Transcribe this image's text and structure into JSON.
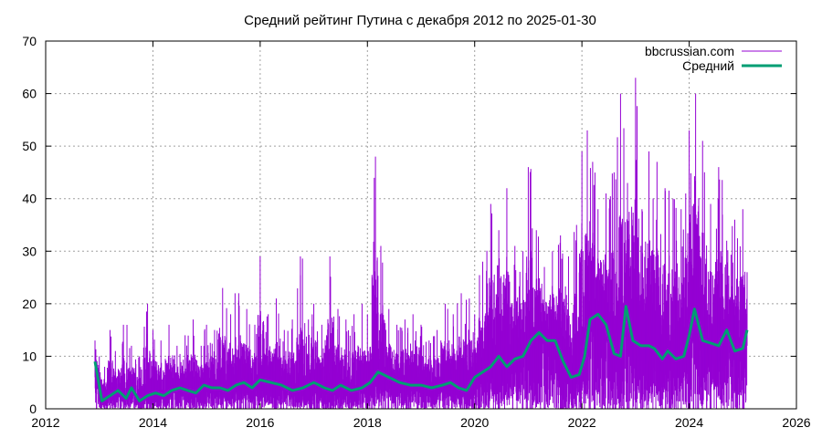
{
  "chart_data": {
    "type": "line",
    "title": "Средний рейтинг Путина с декабря 2012  по 2025-01-30",
    "xlabel": "",
    "ylabel": "",
    "xlim": [
      2012,
      2026
    ],
    "ylim": [
      0,
      70
    ],
    "x_ticks": [
      2012,
      2014,
      2016,
      2018,
      2020,
      2022,
      2024,
      2026
    ],
    "y_ticks": [
      0,
      10,
      20,
      30,
      40,
      50,
      60,
      70
    ],
    "grid": true,
    "legend_position": "top-right",
    "series": [
      {
        "name": "bbcrussian.com",
        "color": "#9400d3",
        "style": "impulses",
        "x": [
          2012.92,
          2013.0,
          2013.1,
          2013.2,
          2013.3,
          2013.45,
          2013.6,
          2013.75,
          2013.9,
          2014.0,
          2014.15,
          2014.3,
          2014.45,
          2014.6,
          2014.75,
          2014.9,
          2015.0,
          2015.15,
          2015.3,
          2015.45,
          2015.6,
          2015.75,
          2015.9,
          2016.0,
          2016.15,
          2016.3,
          2016.45,
          2016.6,
          2016.75,
          2016.9,
          2017.0,
          2017.15,
          2017.3,
          2017.45,
          2017.6,
          2017.75,
          2017.9,
          2018.0,
          2018.15,
          2018.25,
          2018.4,
          2018.55,
          2018.7,
          2018.85,
          2019.0,
          2019.15,
          2019.3,
          2019.45,
          2019.6,
          2019.75,
          2019.9,
          2020.0,
          2020.15,
          2020.3,
          2020.45,
          2020.6,
          2020.75,
          2020.9,
          2021.0,
          2021.15,
          2021.3,
          2021.45,
          2021.6,
          2021.75,
          2021.9,
          2022.0,
          2022.1,
          2022.2,
          2022.3,
          2022.45,
          2022.6,
          2022.72,
          2022.85,
          2023.0,
          2023.12,
          2023.25,
          2023.4,
          2023.55,
          2023.7,
          2023.85,
          2024.0,
          2024.12,
          2024.25,
          2024.4,
          2024.55,
          2024.7,
          2024.85,
          2025.0,
          2025.08
        ],
        "values": [
          13,
          10,
          8,
          15,
          11,
          16,
          12,
          10,
          20,
          15,
          13,
          16,
          12,
          14,
          17,
          12,
          16,
          15,
          23,
          18,
          22,
          19,
          16,
          29,
          18,
          21,
          15,
          17,
          29,
          17,
          20,
          16,
          29,
          19,
          17,
          18,
          20,
          18,
          48,
          31,
          19,
          16,
          17,
          18,
          16,
          13,
          15,
          20,
          18,
          22,
          21,
          18,
          28,
          39,
          34,
          42,
          31,
          30,
          46,
          34,
          27,
          30,
          33,
          29,
          35,
          49,
          53,
          47,
          38,
          41,
          45,
          60,
          43,
          63,
          38,
          49,
          47,
          42,
          40,
          38,
          53,
          60,
          51,
          39,
          46,
          32,
          36,
          38,
          26
        ]
      },
      {
        "name": "Средний",
        "color": "#009e73",
        "style": "line",
        "x": [
          2012.92,
          2013.05,
          2013.2,
          2013.35,
          2013.5,
          2013.6,
          2013.75,
          2013.9,
          2014.05,
          2014.2,
          2014.35,
          2014.5,
          2014.65,
          2014.8,
          2014.95,
          2015.1,
          2015.25,
          2015.4,
          2015.55,
          2015.7,
          2015.85,
          2016.0,
          2016.2,
          2016.4,
          2016.6,
          2016.8,
          2017.0,
          2017.2,
          2017.35,
          2017.5,
          2017.7,
          2017.9,
          2018.05,
          2018.2,
          2018.4,
          2018.6,
          2018.8,
          2019.0,
          2019.2,
          2019.4,
          2019.55,
          2019.7,
          2019.85,
          2020.0,
          2020.15,
          2020.3,
          2020.45,
          2020.6,
          2020.75,
          2020.9,
          2021.05,
          2021.2,
          2021.35,
          2021.5,
          2021.65,
          2021.8,
          2021.95,
          2022.05,
          2022.15,
          2022.3,
          2022.45,
          2022.6,
          2022.72,
          2022.82,
          2022.95,
          2023.1,
          2023.25,
          2023.35,
          2023.5,
          2023.6,
          2023.75,
          2023.9,
          2024.0,
          2024.1,
          2024.25,
          2024.4,
          2024.55,
          2024.7,
          2024.85,
          2025.0,
          2025.08
        ],
        "values": [
          9,
          1.5,
          2.5,
          3.5,
          2,
          4,
          1.5,
          2.5,
          3,
          2.5,
          3.5,
          4,
          3.5,
          3,
          4.5,
          4,
          4,
          3.5,
          4.5,
          5,
          4,
          5.5,
          5,
          4.5,
          3.5,
          4,
          5,
          4,
          3.5,
          4.5,
          3.5,
          4,
          5,
          7,
          6,
          5,
          4.5,
          4.5,
          4,
          4.5,
          5,
          4,
          3.5,
          6,
          7,
          8,
          10,
          8,
          9.5,
          10,
          13,
          14.5,
          13,
          13,
          9,
          6,
          6.5,
          10,
          17,
          18,
          16,
          10.5,
          10,
          19.5,
          13,
          12,
          12,
          11.5,
          9.5,
          11,
          9.5,
          10,
          14,
          19,
          13,
          12.5,
          12,
          15,
          11,
          11.5,
          15
        ]
      }
    ]
  }
}
